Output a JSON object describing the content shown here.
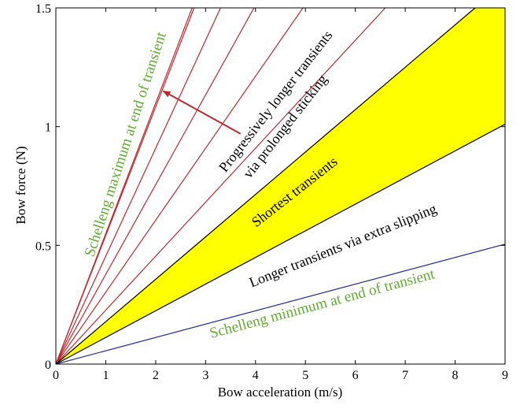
{
  "chart_data": {
    "type": "area",
    "title": "",
    "xlabel": "Bow acceleration (m/s)",
    "ylabel": "Bow force (N)",
    "xlim": [
      0,
      9
    ],
    "ylim": [
      0,
      1.5
    ],
    "x_ticks": [
      "0",
      "1",
      "2",
      "3",
      "4",
      "5",
      "6",
      "7",
      "8",
      "9"
    ],
    "y_ticks": [
      "0",
      "0.5",
      "1",
      "1.5"
    ],
    "x_tick_values": [
      0,
      1,
      2,
      3,
      4,
      5,
      6,
      7,
      8,
      9
    ],
    "y_tick_values": [
      0,
      0.5,
      1,
      1.5
    ],
    "grid": false,
    "legend": "none",
    "series": [
      {
        "color": "#c0282d",
        "kind": "line",
        "x": [
          0,
          2.73
        ],
        "y": [
          0,
          1.5
        ]
      },
      {
        "color": "#c0282d",
        "kind": "line",
        "x": [
          0,
          2.77
        ],
        "y": [
          0,
          1.5
        ]
      },
      {
        "color": "#c0282d",
        "kind": "line",
        "x": [
          0,
          3.3
        ],
        "y": [
          0,
          1.5
        ]
      },
      {
        "color": "#c0282d",
        "kind": "line",
        "x": [
          0,
          3.97
        ],
        "y": [
          0,
          1.5
        ]
      },
      {
        "color": "#c0282d",
        "kind": "line",
        "x": [
          0,
          4.95
        ],
        "y": [
          0,
          1.5
        ]
      },
      {
        "color": "#c0282d",
        "kind": "line",
        "x": [
          0,
          6.6
        ],
        "y": [
          0,
          1.5
        ]
      },
      {
        "color": "#000000",
        "kind": "line",
        "x": [
          0,
          8.4
        ],
        "y": [
          0,
          1.5
        ]
      },
      {
        "color": "#000000",
        "kind": "line",
        "x": [
          0,
          9
        ],
        "y": [
          0,
          1.01
        ]
      },
      {
        "color": "#1f2a9a",
        "kind": "line",
        "x": [
          0,
          9
        ],
        "y": [
          0,
          0.505
        ]
      }
    ],
    "fill_region": {
      "color": "#ffff00",
      "polygon": [
        [
          0,
          0
        ],
        [
          8.4,
          1.5
        ],
        [
          9,
          1.5
        ],
        [
          9,
          1.01
        ]
      ]
    },
    "annotations": [
      {
        "text": "Schelleng maximum at end of transient",
        "color": "#5fae2e"
      },
      {
        "text": "Progressively longer transients",
        "color": "#000000"
      },
      {
        "text": "via prolonged sticking",
        "color": "#000000"
      },
      {
        "text": "Shortest transients",
        "color": "#000000"
      },
      {
        "text": "Longer transients via extra slipping",
        "color": "#000000"
      },
      {
        "text": "Schelleng minimum at end of transient",
        "color": "#5fae2e"
      }
    ],
    "arrow": {
      "color": "#c0282d",
      "from": [
        3.7,
        0.97
      ],
      "to": [
        2.15,
        1.15
      ]
    }
  }
}
